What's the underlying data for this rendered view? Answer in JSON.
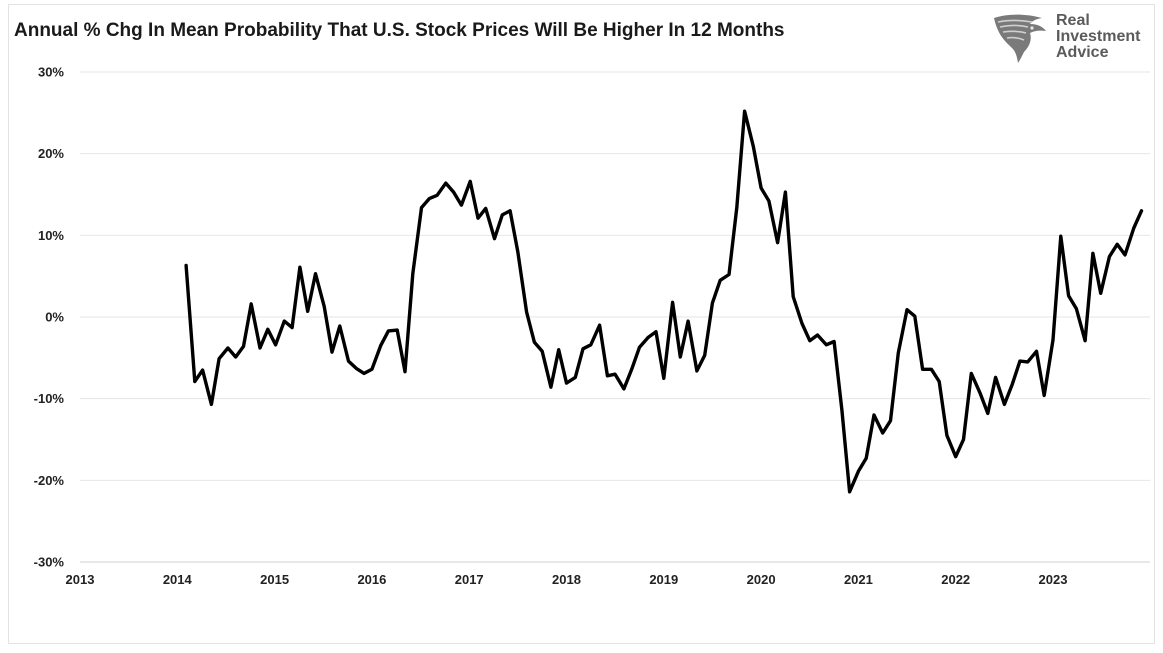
{
  "chart_data": {
    "type": "line",
    "title": "Annual % Chg In Mean Probability That U.S. Stock Prices Will Be Higher In 12 Months",
    "xlabel": "",
    "ylabel": "",
    "xlim": [
      2013,
      2024
    ],
    "ylim": [
      -30,
      30
    ],
    "x_ticks": [
      {
        "value": 2013,
        "label": "2013"
      },
      {
        "value": 2014,
        "label": "2014"
      },
      {
        "value": 2015,
        "label": "2015"
      },
      {
        "value": 2016,
        "label": "2016"
      },
      {
        "value": 2017,
        "label": "2017"
      },
      {
        "value": 2018,
        "label": "2018"
      },
      {
        "value": 2019,
        "label": "2019"
      },
      {
        "value": 2020,
        "label": "2020"
      },
      {
        "value": 2021,
        "label": "2021"
      },
      {
        "value": 2022,
        "label": "2022"
      },
      {
        "value": 2023,
        "label": "2023"
      }
    ],
    "y_ticks": [
      {
        "value": 30,
        "label": "30%"
      },
      {
        "value": 20,
        "label": "20%"
      },
      {
        "value": 10,
        "label": "10%"
      },
      {
        "value": 0,
        "label": "0%"
      },
      {
        "value": -10,
        "label": "-10%"
      },
      {
        "value": -20,
        "label": "-20%"
      },
      {
        "value": -30,
        "label": "-30%"
      }
    ],
    "grid": "horizontal",
    "legend": "none",
    "series": [
      {
        "color": "#000000",
        "x": [
          2014.09,
          2014.18,
          2014.26,
          2014.35,
          2014.43,
          2014.52,
          2014.6,
          2014.68,
          2014.76,
          2014.85,
          2014.93,
          2015.01,
          2015.1,
          2015.18,
          2015.26,
          2015.34,
          2015.42,
          2015.51,
          2015.59,
          2015.67,
          2015.76,
          2015.84,
          2015.92,
          2016.0,
          2016.09,
          2016.17,
          2016.26,
          2016.34,
          2016.42,
          2016.51,
          2016.59,
          2016.67,
          2016.76,
          2016.84,
          2016.92,
          2017.01,
          2017.09,
          2017.17,
          2017.26,
          2017.34,
          2017.42,
          2017.5,
          2017.59,
          2017.67,
          2017.75,
          2017.84,
          2017.92,
          2018.0,
          2018.09,
          2018.17,
          2018.25,
          2018.34,
          2018.42,
          2018.5,
          2018.59,
          2018.67,
          2018.75,
          2018.84,
          2018.92,
          2019.0,
          2019.09,
          2019.17,
          2019.25,
          2019.34,
          2019.42,
          2019.5,
          2019.58,
          2019.67,
          2019.75,
          2019.83,
          2019.92,
          2020.0,
          2020.08,
          2020.17,
          2020.25,
          2020.33,
          2020.42,
          2020.5,
          2020.58,
          2020.67,
          2020.75,
          2020.83,
          2020.91,
          2021.0,
          2021.08,
          2021.16,
          2021.25,
          2021.33,
          2021.41,
          2021.5,
          2021.58,
          2021.66,
          2021.75,
          2021.83,
          2021.91,
          2022.0,
          2022.08,
          2022.16,
          2022.25,
          2022.33,
          2022.41,
          2022.5,
          2022.58,
          2022.66,
          2022.74,
          2022.83,
          2022.91,
          2023.0,
          2023.08,
          2023.16,
          2023.24,
          2023.33,
          2023.41,
          2023.49,
          2023.58,
          2023.66,
          2023.74,
          2023.83,
          2023.91
        ],
        "values": [
          6.3,
          -7.9,
          -6.5,
          -10.7,
          -5.1,
          -3.8,
          -4.9,
          -3.6,
          1.6,
          -3.8,
          -1.5,
          -3.4,
          -0.5,
          -1.3,
          6.1,
          0.7,
          5.3,
          1.3,
          -4.3,
          -1.1,
          -5.4,
          -6.3,
          -6.9,
          -6.4,
          -3.5,
          -1.7,
          -1.6,
          -6.7,
          5.3,
          13.4,
          14.5,
          14.9,
          16.4,
          15.3,
          13.7,
          16.6,
          12.1,
          13.3,
          9.6,
          12.5,
          13.0,
          8.0,
          0.6,
          -3.1,
          -4.2,
          -8.6,
          -4.0,
          -8.1,
          -7.4,
          -3.9,
          -3.4,
          -1.0,
          -7.2,
          -7.0,
          -8.8,
          -6.4,
          -3.7,
          -2.5,
          -1.8,
          -7.5,
          1.8,
          -4.9,
          -0.5,
          -6.6,
          -4.7,
          1.7,
          4.5,
          5.2,
          13.4,
          25.2,
          20.9,
          15.8,
          14.2,
          9.1,
          15.3,
          2.5,
          -0.8,
          -2.9,
          -2.2,
          -3.4,
          -3.0,
          -11.4,
          -21.4,
          -18.9,
          -17.3,
          -12.0,
          -14.2,
          -12.7,
          -4.4,
          0.9,
          0.1,
          -6.4,
          -6.4,
          -7.9,
          -14.5,
          -17.1,
          -15.0,
          -6.9,
          -9.3,
          -11.8,
          -7.4,
          -10.7,
          -8.3,
          -5.4,
          -5.5,
          -4.2,
          -9.6,
          -2.8,
          9.9,
          2.6,
          1.0,
          -2.9,
          7.8,
          2.9,
          7.4,
          8.9,
          7.6,
          10.9,
          13.0
        ]
      }
    ]
  },
  "logo": {
    "name": "eagle-icon",
    "line1": "Real",
    "line2": "Investment",
    "line3": "Advice"
  }
}
